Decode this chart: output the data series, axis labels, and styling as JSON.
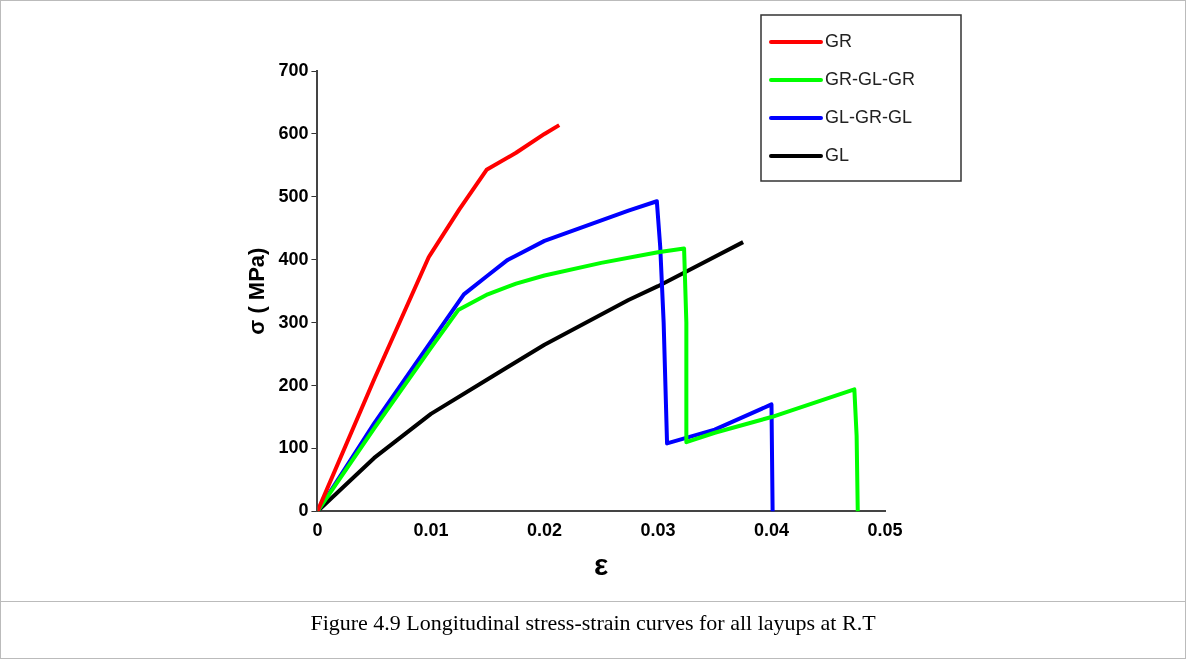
{
  "chart_data": {
    "type": "line",
    "xlabel": "ε",
    "ylabel": "σ ( MPa)",
    "annotations": [
      "Figure 4.9 Longitudinal stress-strain curves for all layups at R.T"
    ],
    "xlim": [
      0,
      0.05
    ],
    "xticks": [
      0,
      0.01,
      0.02,
      0.03,
      0.04,
      0.05
    ],
    "ylim": [
      0,
      700
    ],
    "yticks": [
      0,
      100,
      200,
      300,
      400,
      500,
      600,
      700
    ],
    "grid": false,
    "legend": "top right",
    "marker": "none",
    "line_style": "solid",
    "series": [
      {
        "name": "GR",
        "color": "#ff0000",
        "x": [
          0,
          0.005,
          0.0098,
          0.0125,
          0.0149,
          0.0175,
          0.02,
          0.0213
        ],
        "values": [
          0,
          210,
          404,
          480,
          543,
          570,
          600,
          614
        ]
      },
      {
        "name": "GR-GL-GR",
        "color": "#00ff00",
        "x": [
          0,
          0.005,
          0.01,
          0.0124,
          0.015,
          0.0175,
          0.02,
          0.025,
          0.03,
          0.0323,
          0.0325,
          0.0325,
          0.035,
          0.04,
          0.0473,
          0.0475,
          0.0476
        ],
        "values": [
          0,
          132,
          260,
          320,
          345,
          362,
          375,
          395,
          412,
          418,
          300,
          110,
          125,
          150,
          194,
          120,
          0
        ]
      },
      {
        "name": "GL-GR-GL",
        "color": "#0000ff",
        "x": [
          0,
          0.005,
          0.01,
          0.0129,
          0.015,
          0.0167,
          0.02,
          0.0274,
          0.0299,
          0.0302,
          0.0305,
          0.0308,
          0.035,
          0.04,
          0.0401
        ],
        "values": [
          0,
          140,
          270,
          345,
          375,
          399,
          430,
          478,
          493,
          420,
          300,
          108,
          130,
          170,
          0
        ]
      },
      {
        "name": "GL",
        "color": "#000000",
        "x": [
          0,
          0.005,
          0.01,
          0.015,
          0.02,
          0.0274,
          0.03,
          0.0375
        ],
        "values": [
          0,
          85,
          155,
          210,
          265,
          336,
          358,
          428
        ]
      }
    ]
  }
}
